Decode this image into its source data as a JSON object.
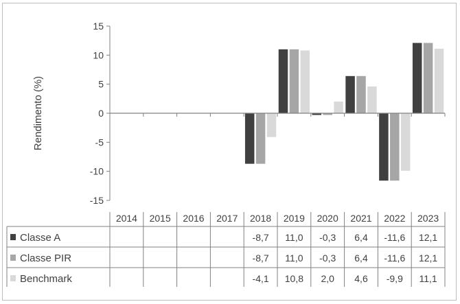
{
  "chart_data": {
    "type": "bar",
    "ylabel": "Rendimento (%)",
    "ylim": [
      -15,
      15
    ],
    "yticks": [
      15,
      10,
      5,
      0,
      -5,
      -10,
      -15
    ],
    "ytick_labels": [
      "15",
      "10",
      "5",
      "0",
      "-5",
      "-10",
      "-15"
    ],
    "categories": [
      "2014",
      "2015",
      "2016",
      "2017",
      "2018",
      "2019",
      "2020",
      "2021",
      "2022",
      "2023"
    ],
    "grid": false,
    "legend": "table-below",
    "series": [
      {
        "name": "Classe A",
        "color": "#404040",
        "values": [
          null,
          null,
          null,
          null,
          -8.7,
          11.0,
          -0.3,
          6.4,
          -11.6,
          12.1
        ],
        "labels": [
          "",
          "",
          "",
          "",
          "-8,7",
          "11,0",
          "-0,3",
          "6,4",
          "-11,6",
          "12,1"
        ]
      },
      {
        "name": "Classe PIR",
        "color": "#a6a6a6",
        "values": [
          null,
          null,
          null,
          null,
          -8.7,
          11.0,
          -0.3,
          6.4,
          -11.6,
          12.1
        ],
        "labels": [
          "",
          "",
          "",
          "",
          "-8,7",
          "11,0",
          "-0,3",
          "6,4",
          "-11,6",
          "12,1"
        ]
      },
      {
        "name": "Benchmark",
        "color": "#d9d9d9",
        "values": [
          null,
          null,
          null,
          null,
          -4.1,
          10.8,
          2.0,
          4.6,
          -9.9,
          11.1
        ],
        "labels": [
          "",
          "",
          "",
          "",
          "-4,1",
          "10,8",
          "2,0",
          "4,6",
          "-9,9",
          "11,1"
        ]
      }
    ]
  }
}
